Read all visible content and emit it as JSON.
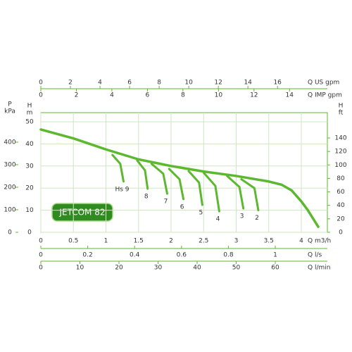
{
  "chart_data": {
    "type": "line",
    "annotation": "JETCOM 82",
    "xlabel": "Q m3/h",
    "xlim": [
      0,
      4.4
    ],
    "xticks": [
      0,
      0.5,
      1,
      1.5,
      2,
      2.5,
      3,
      3.5,
      4
    ],
    "ylabel": [
      "H",
      "m"
    ],
    "ylim": [
      0,
      50
    ],
    "yticks": [
      0,
      10,
      20,
      30,
      40,
      50
    ],
    "grid": true,
    "color": "#5cb82e",
    "y_left": {
      "label": [
        "P",
        "kPa"
      ],
      "lim": [
        0,
        490.5
      ],
      "ticks": [
        0,
        100,
        200,
        300,
        400
      ]
    },
    "y_right": {
      "label": [
        "H",
        "ft"
      ],
      "lim": [
        0,
        164
      ],
      "ticks": [
        0,
        20,
        40,
        60,
        80,
        100,
        120,
        140
      ]
    },
    "top_axes": [
      {
        "label": "Q US gpm",
        "lim": [
          0,
          19.37
        ],
        "ticks": [
          0,
          2,
          4,
          6,
          8,
          10,
          12,
          14,
          16
        ]
      },
      {
        "label": "Q IMP gpm",
        "lim": [
          0,
          16.13
        ],
        "ticks": [
          0,
          2,
          4,
          6,
          8,
          10,
          12,
          14
        ]
      }
    ],
    "bottom_axes": [
      {
        "label": "Q l/s",
        "lim": [
          0,
          1.2222
        ],
        "ticks": [
          0,
          0.2,
          0.4,
          0.6,
          0.8,
          1
        ]
      },
      {
        "label": "Q l/min",
        "lim": [
          0,
          73.33
        ],
        "ticks": [
          0,
          10,
          20,
          30,
          40,
          50,
          60
        ]
      }
    ],
    "series": [
      {
        "x": [
          0,
          0.5,
          1,
          1.5,
          2,
          2.5,
          3,
          3.5,
          3.7,
          3.85,
          4,
          4.1,
          4.26
        ],
        "values": [
          46.5,
          42.5,
          37.5,
          33,
          30,
          27.5,
          25.5,
          23,
          21.5,
          19,
          14,
          10,
          2.5
        ]
      },
      {
        "name": "Hs 9",
        "x": [
          1.1,
          1.22,
          1.27
        ],
        "values": [
          35,
          31,
          23
        ]
      },
      {
        "name": "8",
        "x": [
          1.48,
          1.6,
          1.64
        ],
        "values": [
          32.5,
          28,
          19.7
        ]
      },
      {
        "name": "7",
        "x": [
          1.7,
          1.88,
          1.94
        ],
        "values": [
          31,
          26.5,
          17.5
        ]
      },
      {
        "name": "6",
        "x": [
          1.97,
          2.13,
          2.19
        ],
        "values": [
          28.7,
          24,
          15
        ]
      },
      {
        "name": "5",
        "x": [
          2.27,
          2.43,
          2.48
        ],
        "values": [
          27.7,
          22.5,
          12.4
        ]
      },
      {
        "name": "4",
        "x": [
          2.5,
          2.68,
          2.74
        ],
        "values": [
          27,
          21,
          9.5
        ]
      },
      {
        "name": "3",
        "x": [
          2.86,
          3.05,
          3.11
        ],
        "values": [
          25.5,
          20.5,
          10.8
        ]
      },
      {
        "name": "2",
        "x": [
          3.08,
          3.28,
          3.34
        ],
        "values": [
          24,
          20,
          10
        ]
      }
    ]
  }
}
